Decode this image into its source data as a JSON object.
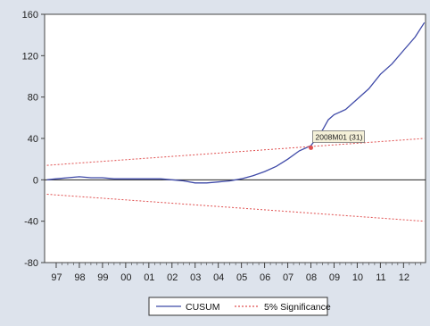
{
  "chart_data": {
    "type": "line",
    "title": "",
    "xlabel": "",
    "ylabel": "",
    "ylim": [
      -80,
      160
    ],
    "yticks": [
      -80,
      -40,
      0,
      40,
      80,
      120,
      160
    ],
    "xlim": [
      1996.5,
      2012.95
    ],
    "xtick_labels": [
      "97",
      "98",
      "99",
      "00",
      "01",
      "02",
      "03",
      "04",
      "05",
      "06",
      "07",
      "08",
      "09",
      "10",
      "11",
      "12"
    ],
    "grid": false,
    "legend_position": "bottom-center",
    "series": [
      {
        "name": "CUSUM",
        "color": "#3f4aa8",
        "x": [
          1996.6,
          1997.0,
          1997.5,
          1998.0,
          1998.5,
          1999.0,
          1999.5,
          2000.0,
          2000.5,
          2001.0,
          2001.5,
          2002.0,
          2002.5,
          2003.0,
          2003.5,
          2004.0,
          2004.5,
          2005.0,
          2005.5,
          2006.0,
          2006.5,
          2007.0,
          2007.5,
          2008.0,
          2008.5,
          2008.75,
          2009.0,
          2009.5,
          2010.0,
          2010.5,
          2011.0,
          2011.5,
          2012.0,
          2012.5,
          2012.9
        ],
        "y": [
          0,
          1,
          2,
          3,
          2,
          2,
          1,
          1,
          1,
          1,
          1,
          0,
          -1,
          -3,
          -3,
          -2,
          -1,
          1,
          4,
          8,
          13,
          20,
          28,
          33,
          48,
          58,
          63,
          68,
          78,
          88,
          102,
          112,
          125,
          138,
          152
        ]
      },
      {
        "name": "5% Significance",
        "color": "#e05050",
        "dashed": true,
        "x": [
          1996.6,
          2012.9
        ],
        "y": [
          14,
          40
        ]
      },
      {
        "name": "5% Significance",
        "color": "#e05050",
        "dashed": true,
        "show_in_legend": false,
        "x": [
          1996.6,
          2012.9
        ],
        "y": [
          -14,
          -40
        ]
      }
    ],
    "annotation": {
      "label": "2008M01 (31)",
      "x": 2008.0,
      "y": 31,
      "color": "#e05050"
    }
  }
}
